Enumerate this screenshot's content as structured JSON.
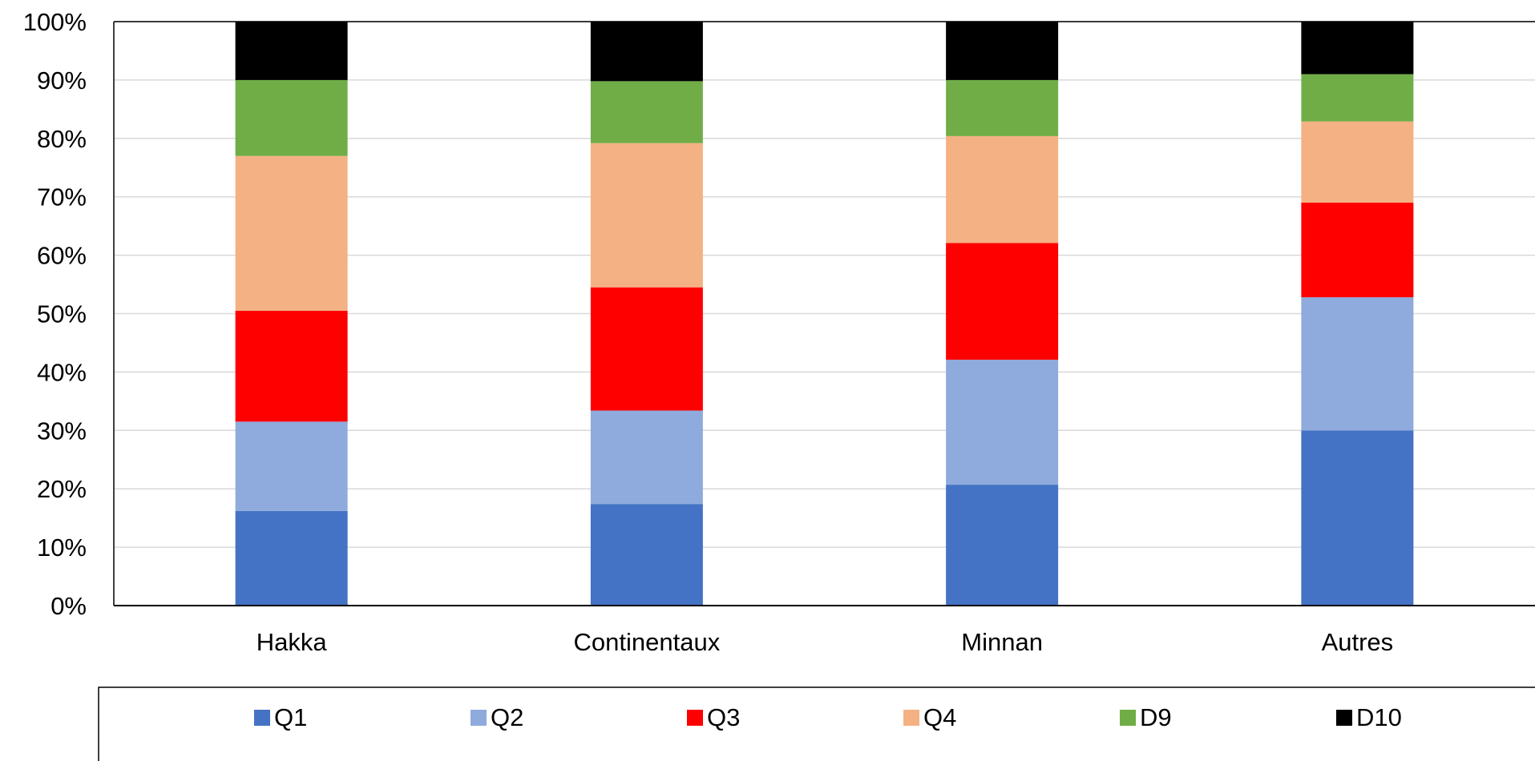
{
  "chart_data": {
    "type": "bar",
    "stacked": "100%",
    "categories": [
      "Hakka",
      "Continentaux",
      "Minnan",
      "Autres"
    ],
    "series": [
      {
        "name": "Q1",
        "color": "#4472C4",
        "values": [
          16.2,
          17.4,
          20.7,
          30.0
        ]
      },
      {
        "name": "Q2",
        "color": "#8FAADC",
        "values": [
          15.3,
          16.0,
          21.4,
          22.8
        ]
      },
      {
        "name": "Q3",
        "color": "#FF0000",
        "values": [
          19.0,
          21.1,
          20.0,
          16.2
        ]
      },
      {
        "name": "Q4",
        "color": "#F4B183",
        "values": [
          26.5,
          24.7,
          18.3,
          13.9
        ]
      },
      {
        "name": "D9",
        "color": "#70AD47",
        "values": [
          13.0,
          10.6,
          9.6,
          8.1
        ]
      },
      {
        "name": "D10",
        "color": "#000000",
        "values": [
          10.0,
          10.2,
          10.0,
          9.0
        ]
      }
    ],
    "ylim": [
      0,
      100
    ],
    "y_ticks": [
      "0%",
      "10%",
      "20%",
      "30%",
      "40%",
      "50%",
      "60%",
      "70%",
      "80%",
      "90%",
      "100%"
    ],
    "grid": true,
    "legend_position": "bottom"
  }
}
